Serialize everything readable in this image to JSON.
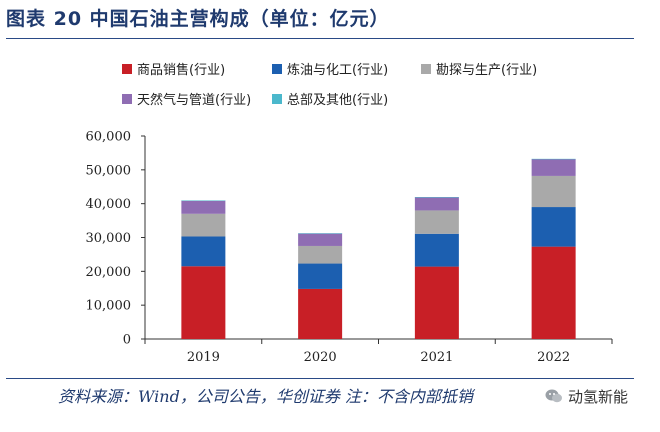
{
  "header": {
    "title": "图表 20 中国石油主营构成（单位：亿元）"
  },
  "footer": {
    "source": "资料来源：Wind，公司公告，华创证券 注：不含内部抵销",
    "watermark": "动氢新能"
  },
  "colors": {
    "title": "#1f3a6e",
    "rule": "#2a4a86"
  },
  "chart_data": {
    "type": "bar",
    "stacked": true,
    "categories": [
      "2019",
      "2020",
      "2021",
      "2022"
    ],
    "series": [
      {
        "name": "商品销售(行业)",
        "color": "#c81f26",
        "values": [
          21500,
          14800,
          21400,
          27300
        ]
      },
      {
        "name": "炼油与化工(行业)",
        "color": "#1c5fb0",
        "values": [
          8800,
          7500,
          9700,
          11700
        ]
      },
      {
        "name": "勘探与生产(行业)",
        "color": "#a9a9a9",
        "values": [
          6700,
          5200,
          6900,
          9200
        ]
      },
      {
        "name": "天然气与管道(行业)",
        "color": "#8f6db3",
        "values": [
          3900,
          3700,
          3900,
          5000
        ]
      },
      {
        "name": "总部及其他(行业)",
        "color": "#4bb8cc",
        "values": [
          50,
          50,
          50,
          50
        ]
      }
    ],
    "ylim": [
      0,
      60000
    ],
    "yticks": [
      "0",
      "10,000",
      "20,000",
      "30,000",
      "40,000",
      "50,000",
      "60,000"
    ],
    "grid": false,
    "legend": "top"
  }
}
